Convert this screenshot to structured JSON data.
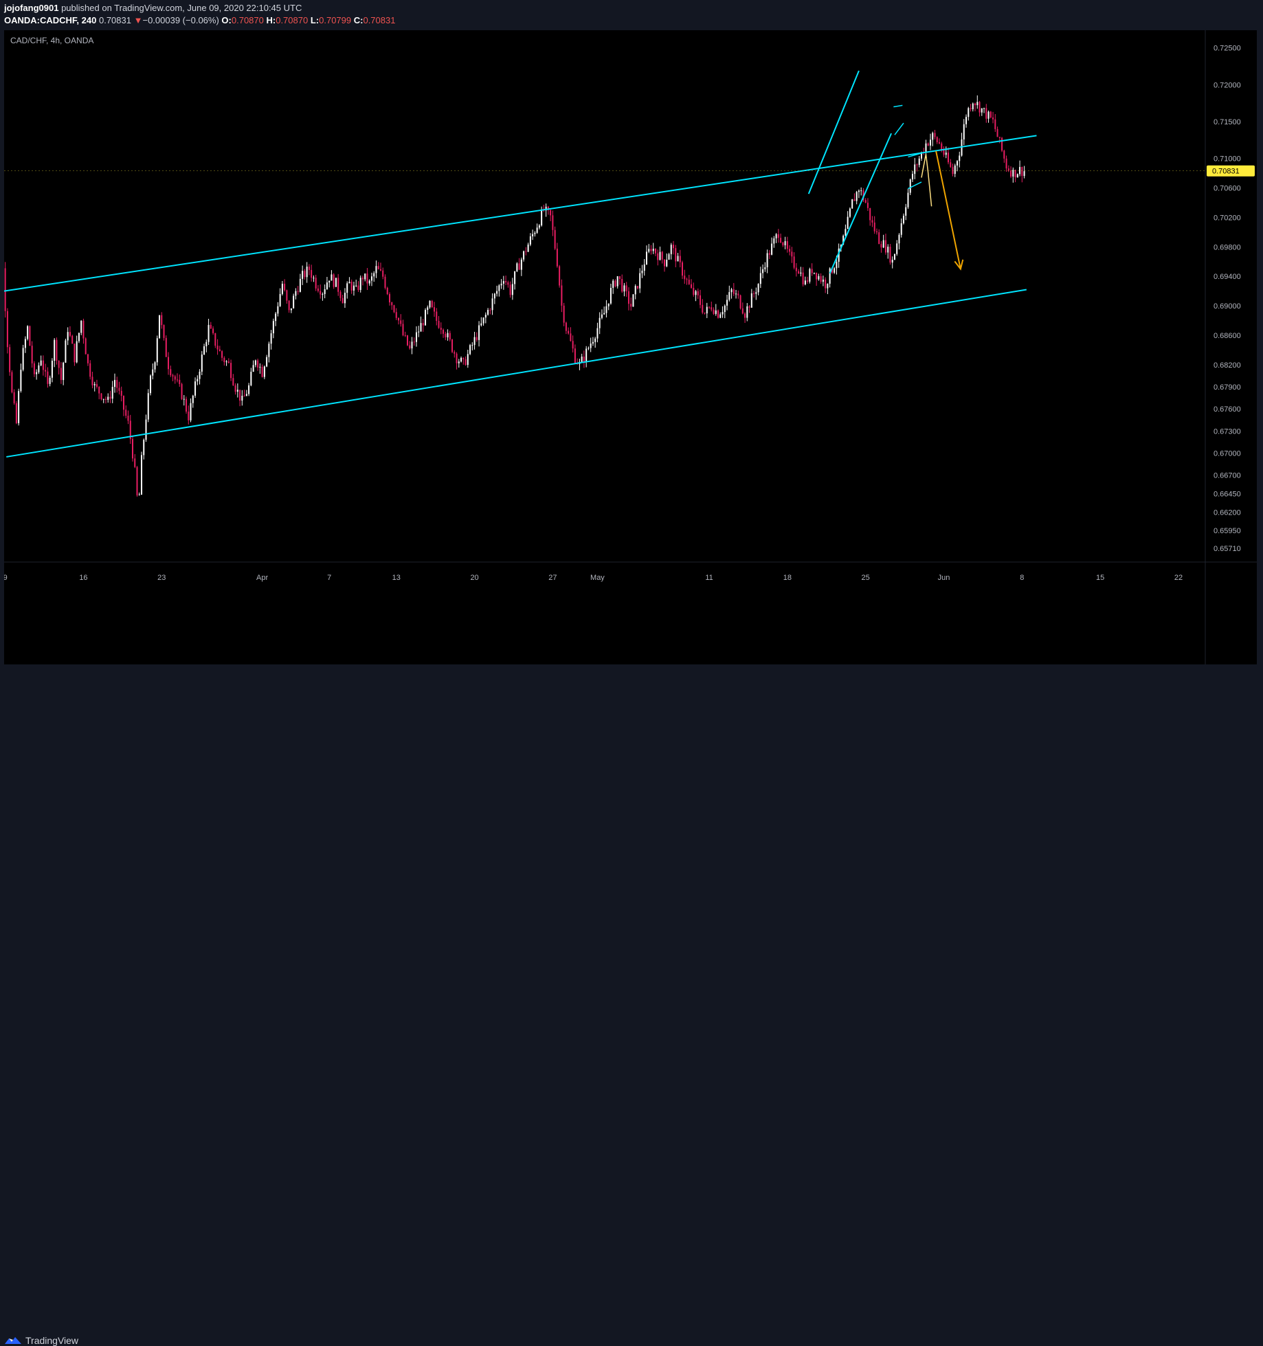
{
  "header": {
    "user": "jojofang0901",
    "published": " published on TradingView.com, June 09, 2020 22:10:45 UTC",
    "symbol": "OANDA:CADCHF, 240",
    "last": "0.70831",
    "arrow": "▼",
    "change": "−0.00039 (−0.06%)",
    "o_label": "O:",
    "o_value": "0.70870",
    "h_label": "H:",
    "h_value": "0.70870",
    "l_label": "L:",
    "l_value": "0.70799",
    "c_label": "C:",
    "c_value": "0.70831"
  },
  "chart_label": "CAD/CHF, 4h, OANDA",
  "footer": {
    "brand": "TradingView"
  },
  "colors": {
    "up": "#ffffff",
    "down": "#e91e63",
    "channel": "#00e5ff",
    "arrow": "#f0a500",
    "sketch": "#ffe082",
    "price_badge": "#ffeb3b"
  },
  "chart_data": {
    "type": "candlestick",
    "symbol": "CAD/CHF",
    "timeframe": "4h",
    "ylim": [
      0.6556,
      0.7274
    ],
    "y_ticks": [
      0.725,
      0.72,
      0.715,
      0.71,
      0.706,
      0.702,
      0.698,
      0.694,
      0.69,
      0.686,
      0.682,
      0.679,
      0.676,
      0.673,
      0.67,
      0.667,
      0.6645,
      0.662,
      0.6595,
      0.6571
    ],
    "y_tick_labels": [
      "0.72500",
      "0.72000",
      "0.71500",
      "0.71000",
      "0.70600",
      "0.70200",
      "0.69800",
      "0.69400",
      "0.69000",
      "0.68600",
      "0.68200",
      "0.67900",
      "0.67600",
      "0.67300",
      "0.67000",
      "0.66700",
      "0.66450",
      "0.66200",
      "0.65950",
      "0.65710"
    ],
    "x_ticks": [
      {
        "label": "9",
        "day": 0
      },
      {
        "label": "16",
        "day": 7
      },
      {
        "label": "23",
        "day": 14
      },
      {
        "label": "Apr",
        "day": 23
      },
      {
        "label": "7",
        "day": 29
      },
      {
        "label": "13",
        "day": 35
      },
      {
        "label": "20",
        "day": 42
      },
      {
        "label": "27",
        "day": 49
      },
      {
        "label": "May",
        "day": 53
      },
      {
        "label": "11",
        "day": 63
      },
      {
        "label": "18",
        "day": 70
      },
      {
        "label": "25",
        "day": 77
      },
      {
        "label": "Jun",
        "day": 84
      },
      {
        "label": "8",
        "day": 91
      },
      {
        "label": "15",
        "day": 98
      },
      {
        "label": "22",
        "day": 105
      }
    ],
    "xlim_days": [
      -0.1,
      107.4
    ],
    "last_price": {
      "value": 0.70831,
      "label": "0.70831"
    },
    "price_path": [
      [
        -1.4,
        0.7068
      ],
      [
        -1.0,
        0.7055
      ],
      [
        -0.6,
        0.698
      ],
      [
        -0.2,
        0.695
      ],
      [
        0.2,
        0.685
      ],
      [
        0.6,
        0.678
      ],
      [
        1.0,
        0.674
      ],
      [
        1.4,
        0.682
      ],
      [
        2.0,
        0.687
      ],
      [
        2.6,
        0.68
      ],
      [
        3.2,
        0.683
      ],
      [
        3.8,
        0.679
      ],
      [
        4.4,
        0.685
      ],
      [
        5.0,
        0.68
      ],
      [
        5.6,
        0.687
      ],
      [
        6.2,
        0.683
      ],
      [
        6.8,
        0.688
      ],
      [
        7.4,
        0.682
      ],
      [
        8.0,
        0.679
      ],
      [
        8.6,
        0.678
      ],
      [
        9.2,
        0.677
      ],
      [
        9.8,
        0.68
      ],
      [
        10.4,
        0.677
      ],
      [
        11.0,
        0.674
      ],
      [
        11.4,
        0.67
      ],
      [
        11.7,
        0.666
      ],
      [
        11.9,
        0.662
      ],
      [
        12.2,
        0.669
      ],
      [
        12.6,
        0.675
      ],
      [
        13.0,
        0.68
      ],
      [
        13.4,
        0.683
      ],
      [
        13.8,
        0.689
      ],
      [
        14.2,
        0.685
      ],
      [
        14.6,
        0.682
      ],
      [
        15.2,
        0.68
      ],
      [
        15.8,
        0.678
      ],
      [
        16.4,
        0.675
      ],
      [
        17.0,
        0.679
      ],
      [
        17.6,
        0.683
      ],
      [
        18.2,
        0.687
      ],
      [
        18.8,
        0.685
      ],
      [
        19.4,
        0.683
      ],
      [
        20.0,
        0.682
      ],
      [
        20.6,
        0.679
      ],
      [
        21.2,
        0.677
      ],
      [
        21.8,
        0.679
      ],
      [
        22.4,
        0.683
      ],
      [
        23.0,
        0.681
      ],
      [
        23.6,
        0.685
      ],
      [
        24.2,
        0.689
      ],
      [
        24.8,
        0.693
      ],
      [
        25.4,
        0.689
      ],
      [
        26.0,
        0.692
      ],
      [
        26.6,
        0.694
      ],
      [
        27.2,
        0.695
      ],
      [
        27.8,
        0.693
      ],
      [
        28.4,
        0.692
      ],
      [
        29.0,
        0.694
      ],
      [
        29.6,
        0.693
      ],
      [
        30.2,
        0.691
      ],
      [
        30.8,
        0.693
      ],
      [
        31.4,
        0.692
      ],
      [
        32.0,
        0.694
      ],
      [
        32.6,
        0.693
      ],
      [
        33.2,
        0.695
      ],
      [
        33.8,
        0.694
      ],
      [
        34.4,
        0.691
      ],
      [
        35.0,
        0.689
      ],
      [
        35.6,
        0.686
      ],
      [
        36.2,
        0.684
      ],
      [
        36.8,
        0.686
      ],
      [
        37.4,
        0.688
      ],
      [
        38.0,
        0.69
      ],
      [
        38.6,
        0.688
      ],
      [
        39.2,
        0.687
      ],
      [
        39.8,
        0.685
      ],
      [
        40.4,
        0.683
      ],
      [
        41.0,
        0.682
      ],
      [
        41.6,
        0.684
      ],
      [
        42.2,
        0.686
      ],
      [
        42.8,
        0.688
      ],
      [
        43.4,
        0.69
      ],
      [
        44.0,
        0.692
      ],
      [
        44.6,
        0.694
      ],
      [
        45.2,
        0.692
      ],
      [
        45.8,
        0.695
      ],
      [
        46.4,
        0.697
      ],
      [
        47.0,
        0.699
      ],
      [
        47.6,
        0.701
      ],
      [
        48.2,
        0.703
      ],
      [
        48.8,
        0.702
      ],
      [
        49.4,
        0.696
      ],
      [
        49.8,
        0.69
      ],
      [
        50.2,
        0.687
      ],
      [
        50.6,
        0.685
      ],
      [
        51.0,
        0.683
      ],
      [
        51.4,
        0.682
      ],
      [
        51.8,
        0.683
      ],
      [
        52.4,
        0.685
      ],
      [
        53.0,
        0.687
      ],
      [
        53.6,
        0.689
      ],
      [
        54.2,
        0.692
      ],
      [
        54.8,
        0.694
      ],
      [
        55.4,
        0.692
      ],
      [
        56.0,
        0.69
      ],
      [
        56.6,
        0.693
      ],
      [
        57.2,
        0.696
      ],
      [
        57.8,
        0.698
      ],
      [
        58.4,
        0.697
      ],
      [
        59.0,
        0.696
      ],
      [
        59.6,
        0.698
      ],
      [
        60.2,
        0.696
      ],
      [
        60.8,
        0.694
      ],
      [
        61.4,
        0.692
      ],
      [
        62.0,
        0.691
      ],
      [
        62.6,
        0.689
      ],
      [
        63.2,
        0.69
      ],
      [
        63.8,
        0.689
      ],
      [
        64.4,
        0.69
      ],
      [
        65.0,
        0.692
      ],
      [
        65.6,
        0.691
      ],
      [
        66.2,
        0.689
      ],
      [
        66.8,
        0.691
      ],
      [
        67.4,
        0.693
      ],
      [
        68.0,
        0.696
      ],
      [
        68.6,
        0.698
      ],
      [
        69.2,
        0.7
      ],
      [
        69.8,
        0.698
      ],
      [
        70.4,
        0.696
      ],
      [
        71.0,
        0.695
      ],
      [
        71.6,
        0.693
      ],
      [
        72.2,
        0.695
      ],
      [
        72.8,
        0.694
      ],
      [
        73.4,
        0.693
      ],
      [
        74.0,
        0.695
      ],
      [
        74.6,
        0.697
      ],
      [
        75.2,
        0.7
      ],
      [
        75.8,
        0.704
      ],
      [
        76.4,
        0.706
      ],
      [
        77.0,
        0.704
      ],
      [
        77.6,
        0.701
      ],
      [
        78.2,
        0.699
      ],
      [
        78.8,
        0.698
      ],
      [
        79.4,
        0.696
      ],
      [
        80.0,
        0.7
      ],
      [
        80.6,
        0.704
      ],
      [
        81.2,
        0.708
      ],
      [
        81.8,
        0.71
      ],
      [
        82.4,
        0.712
      ],
      [
        83.0,
        0.713
      ],
      [
        83.6,
        0.712
      ],
      [
        84.2,
        0.71
      ],
      [
        84.8,
        0.708
      ],
      [
        85.4,
        0.711
      ],
      [
        86.0,
        0.716
      ],
      [
        86.6,
        0.718
      ],
      [
        87.2,
        0.717
      ],
      [
        87.8,
        0.716
      ],
      [
        88.4,
        0.715
      ],
      [
        89.0,
        0.712
      ],
      [
        89.6,
        0.709
      ],
      [
        90.2,
        0.708
      ],
      [
        90.8,
        0.7084
      ],
      [
        91.2,
        0.7083
      ]
    ],
    "annotations": {
      "channel_upper": [
        [
          -0.1,
          0.692
        ],
        [
          92.3,
          0.7131
        ]
      ],
      "channel_lower": [
        [
          0.1,
          0.6695
        ],
        [
          91.4,
          0.6922
        ]
      ],
      "rising_upper": [
        [
          71.9,
          0.7052
        ],
        [
          76.4,
          0.7219
        ]
      ],
      "rising_lower": [
        [
          73.8,
          0.6944
        ],
        [
          79.3,
          0.7134
        ]
      ],
      "small_flag_upper": [
        [
          79.5,
          0.717
        ],
        [
          80.3,
          0.7172
        ]
      ],
      "small_flag_lower": [
        [
          79.6,
          0.7132
        ],
        [
          80.4,
          0.7148
        ]
      ],
      "flag_upper": [
        [
          80.8,
          0.7102
        ],
        [
          82.2,
          0.7108
        ]
      ],
      "flag_lower": [
        [
          80.8,
          0.7059
        ],
        [
          82.0,
          0.7068
        ]
      ],
      "sketch_path": [
        [
          82.0,
          0.7074
        ],
        [
          82.2,
          0.709
        ],
        [
          82.4,
          0.7106
        ],
        [
          82.6,
          0.708
        ],
        [
          82.9,
          0.7035
        ]
      ],
      "arrow": [
        [
          83.3,
          0.711
        ],
        [
          85.5,
          0.695
        ]
      ]
    }
  }
}
